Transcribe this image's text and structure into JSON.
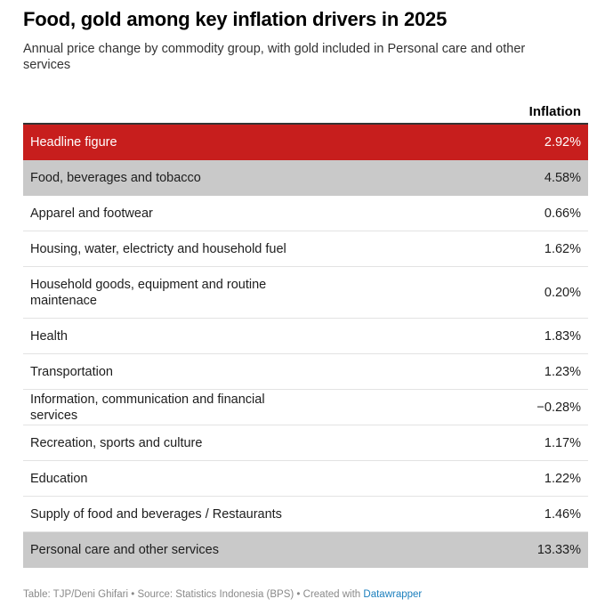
{
  "title": "Food, gold among key inflation drivers in 2025",
  "subtitle": "Annual price change by commodity group, with gold included in Personal care and other services",
  "table": {
    "column_header": "Inflation",
    "rows": [
      {
        "label": "Headline figure",
        "value": "2.92%",
        "style": "headline"
      },
      {
        "label": "Food, beverages and tobacco",
        "value": "4.58%",
        "style": "shaded"
      },
      {
        "label": "Apparel and footwear",
        "value": "0.66%",
        "style": "normal"
      },
      {
        "label": "Housing, water, electricty and household fuel",
        "value": "1.62%",
        "style": "normal"
      },
      {
        "label": "Household goods, equipment and routine maintenace",
        "value": "0.20%",
        "style": "normal"
      },
      {
        "label": "Health",
        "value": "1.83%",
        "style": "normal"
      },
      {
        "label": "Transportation",
        "value": "1.23%",
        "style": "normal"
      },
      {
        "label": "Information, communication and financial services",
        "value": "−0.28%",
        "style": "normal"
      },
      {
        "label": "Recreation, sports and culture",
        "value": "1.17%",
        "style": "normal"
      },
      {
        "label": "Education",
        "value": "1.22%",
        "style": "normal"
      },
      {
        "label": "Supply of food and beverages / Restaurants",
        "value": "1.46%",
        "style": "normal"
      },
      {
        "label": "Personal care and other services",
        "value": "13.33%",
        "style": "shaded"
      }
    ]
  },
  "chart_data": {
    "type": "table",
    "title": "Food, gold among key inflation drivers in 2025",
    "subtitle": "Annual price change by commodity group, with gold included in Personal care and other services",
    "columns": [
      "",
      "Inflation"
    ],
    "categories": [
      "Headline figure",
      "Food, beverages and tobacco",
      "Apparel and footwear",
      "Housing, water, electricty and household fuel",
      "Household goods, equipment and routine maintenace",
      "Health",
      "Transportation",
      "Information, communication and financial services",
      "Recreation, sports and culture",
      "Education",
      "Supply of food and beverages / Restaurants",
      "Personal care and other services"
    ],
    "values": [
      2.92,
      4.58,
      0.66,
      1.62,
      0.2,
      1.83,
      1.23,
      -0.28,
      1.17,
      1.22,
      1.46,
      13.33
    ],
    "unit": "%"
  },
  "colors": {
    "headline_bg": "#c71e1d",
    "highlight_bg": "#c9c9c9",
    "link": "#1b7fbd"
  },
  "footer": {
    "credit": "Table: TJP/Deni Ghifari • Source: Statistics Indonesia (BPS) • Created with ",
    "link_text": "Datawrapper"
  }
}
